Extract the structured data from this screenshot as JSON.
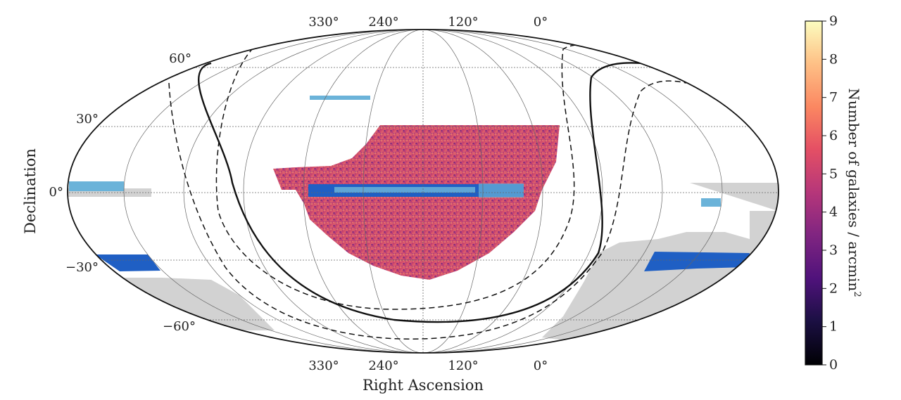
{
  "chart_data": {
    "type": "heatmap",
    "projection": "mollweide",
    "xlabel": "Right Ascension",
    "ylabel": "Declination",
    "ra_tick_labels": [
      "330°",
      "240°",
      "120°",
      "0°"
    ],
    "dec_tick_labels": [
      "60°",
      "30°",
      "0°",
      "−30°",
      "−60°"
    ],
    "colorbar": {
      "label": "Number of galaxies / arcmin",
      "label_superscript": "2",
      "min": 0,
      "max": 9,
      "ticks": [
        "0",
        "1",
        "2",
        "3",
        "4",
        "5",
        "6",
        "7",
        "8",
        "9"
      ],
      "colormap": "magma"
    },
    "features": [
      "galaxy density survey footprint",
      "Galactic plane boundary (solid)",
      "Galactic latitude limits (dashed)",
      "light-blue stripe regions",
      "dark-blue stripe regions",
      "grey survey footprint"
    ]
  },
  "colors": {
    "footprint_grey": "#d2d2d2",
    "stripe_light_blue": "#6bb3d9",
    "stripe_dark_blue": "#1f5fc4",
    "grid": "#666666",
    "outline": "#111111"
  }
}
